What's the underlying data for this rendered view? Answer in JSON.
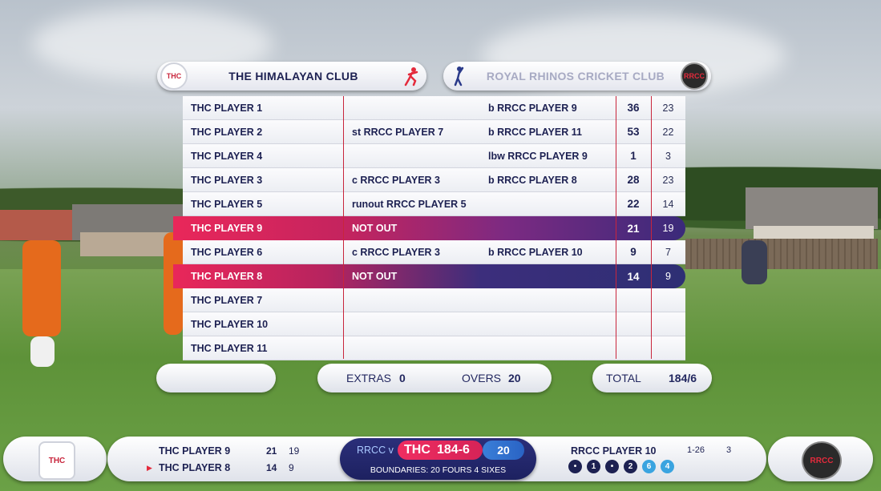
{
  "home_team": {
    "name": "THE HIMALAYAN CLUB",
    "logo_text": "THC"
  },
  "away_team": {
    "name": "ROYAL RHINOS CRICKET CLUB",
    "logo_text": "RRCC"
  },
  "batting": [
    {
      "player": "THC PLAYER 1",
      "fielder": "",
      "dismissal": "b RRCC PLAYER 9",
      "runs": "36",
      "balls": "23",
      "not_out": false
    },
    {
      "player": "THC PLAYER 2",
      "fielder": "st RRCC PLAYER 7",
      "dismissal": "b RRCC PLAYER 11",
      "runs": "53",
      "balls": "22",
      "not_out": false
    },
    {
      "player": "THC PLAYER 4",
      "fielder": "",
      "dismissal": "lbw RRCC PLAYER 9",
      "runs": "1",
      "balls": "3",
      "not_out": false
    },
    {
      "player": "THC PLAYER 3",
      "fielder": "c RRCC PLAYER 3",
      "dismissal": "b RRCC PLAYER 8",
      "runs": "28",
      "balls": "23",
      "not_out": false
    },
    {
      "player": "THC PLAYER 5",
      "fielder": "runout RRCC PLAYER 5",
      "dismissal": "",
      "runs": "22",
      "balls": "14",
      "not_out": false
    },
    {
      "player": "THC PLAYER 9",
      "fielder": "NOT OUT",
      "dismissal": "",
      "runs": "21",
      "balls": "19",
      "not_out": true
    },
    {
      "player": "THC PLAYER 6",
      "fielder": "c RRCC PLAYER 3",
      "dismissal": "b RRCC PLAYER 10",
      "runs": "9",
      "balls": "7",
      "not_out": false
    },
    {
      "player": "THC PLAYER 8",
      "fielder": "NOT OUT",
      "dismissal": "",
      "runs": "14",
      "balls": "9",
      "not_out": true
    },
    {
      "player": "THC PLAYER 7",
      "fielder": "",
      "dismissal": "",
      "runs": "",
      "balls": "",
      "not_out": false
    },
    {
      "player": "THC PLAYER 10",
      "fielder": "",
      "dismissal": "",
      "runs": "",
      "balls": "",
      "not_out": false
    },
    {
      "player": "THC PLAYER 11",
      "fielder": "",
      "dismissal": "",
      "runs": "",
      "balls": "",
      "not_out": false
    }
  ],
  "summary": {
    "extras_label": "EXTRAS",
    "extras_value": "0",
    "overs_label": "OVERS",
    "overs_value": "20",
    "total_label": "TOTAL",
    "total_value": "184/6"
  },
  "scorebar": {
    "batter1_name": "THC PLAYER 9",
    "batter1_runs": "21",
    "batter1_balls": "19",
    "batter2_name": "THC PLAYER 8",
    "batter2_runs": "14",
    "batter2_balls": "9",
    "strike_marker": "▶",
    "match_prefix": "RRCC v",
    "batting_team": "THC",
    "score": "184-6",
    "overs": "20",
    "boundaries": "BOUNDARIES: 20 FOURS 4 SIXES",
    "bowler_name": "RRCC PLAYER 10",
    "bowler_figures": "1-26",
    "bowler_overs": "3",
    "this_over": [
      "•",
      "1",
      "•",
      "2",
      "6",
      "4"
    ]
  },
  "colors": {
    "navy": "#1d2152",
    "pink": "#e9275a",
    "purple": "#3a2a7a",
    "light_blue": "#3aa4e0",
    "red_line": "#c8253c"
  }
}
